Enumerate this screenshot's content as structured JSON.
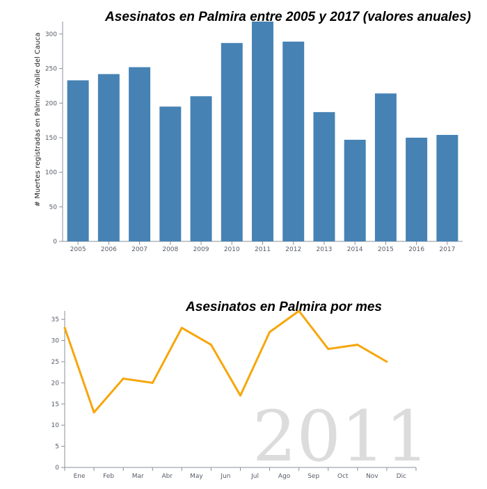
{
  "colors": {
    "bar": "#4682b4",
    "line": "#f7a60a",
    "axis": "#8a8f99",
    "year_label": "#dcdcdc"
  },
  "chart_data": [
    {
      "type": "bar",
      "title": "Asesinatos en Palmira entre 2005 y 2017 (valores anuales)",
      "xlabel": "",
      "ylabel": "# Muertes registradas en Palmira -Valle del Cauca",
      "categories": [
        "2005",
        "2006",
        "2007",
        "2008",
        "2009",
        "2010",
        "2011",
        "2012",
        "2013",
        "2014",
        "2015",
        "2016",
        "2017"
      ],
      "values": [
        233,
        242,
        252,
        195,
        210,
        287,
        318,
        289,
        187,
        147,
        214,
        150,
        154
      ],
      "ylim": [
        0,
        318
      ],
      "yticks": [
        0,
        50,
        100,
        150,
        200,
        250,
        300
      ],
      "grid": false,
      "legend": "none"
    },
    {
      "type": "line",
      "title": "Asesinatos en Palmira por mes",
      "xlabel": "",
      "ylabel": "",
      "categories": [
        "Ene",
        "Feb",
        "Mar",
        "Abr",
        "May",
        "Jun",
        "Jul",
        "Ago",
        "Sep",
        "Oct",
        "Nov",
        "Dic"
      ],
      "values": [
        33,
        13,
        21,
        20,
        33,
        29,
        17,
        32,
        37,
        28,
        29,
        25
      ],
      "year_label": "2011",
      "ylim": [
        0,
        37
      ],
      "yticks": [
        0,
        5,
        10,
        15,
        20,
        25,
        30,
        35
      ],
      "grid": false,
      "legend": "none"
    }
  ]
}
